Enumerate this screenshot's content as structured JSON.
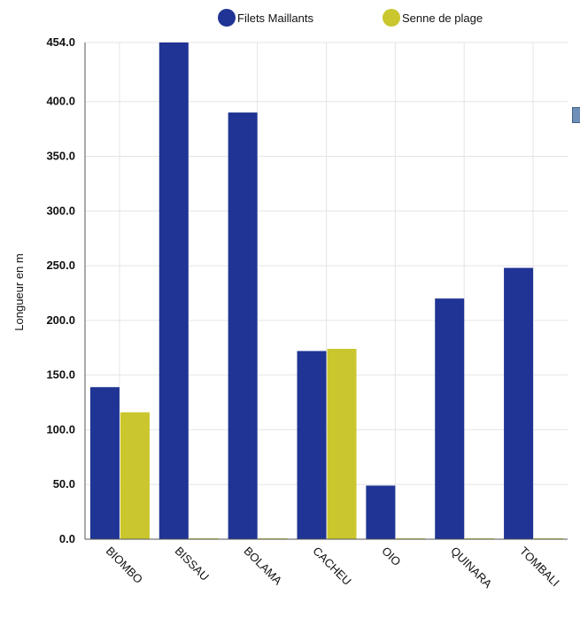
{
  "chart_data": {
    "type": "bar",
    "ylabel": "Longueur en m",
    "categories": [
      "BIOMBO",
      "BISSAU",
      "BOLAMA",
      "CACHEU",
      "OIO",
      "QUINARA",
      "TOMBALI"
    ],
    "series": [
      {
        "name": "Filets Maillants",
        "color": "#1f3494",
        "values": [
          139,
          454,
          390,
          172,
          49,
          220,
          248
        ]
      },
      {
        "name": "Senne de plage",
        "color": "#c9c62e",
        "values": [
          116,
          0,
          0,
          174,
          0,
          0,
          0
        ]
      }
    ],
    "ylim": [
      0,
      454
    ],
    "yticks": [
      "0.0",
      "50.0",
      "100.0",
      "150.0",
      "200.0",
      "250.0",
      "300.0",
      "350.0",
      "400.0",
      "454.0"
    ],
    "legend_position": "top-center",
    "grid": true
  }
}
